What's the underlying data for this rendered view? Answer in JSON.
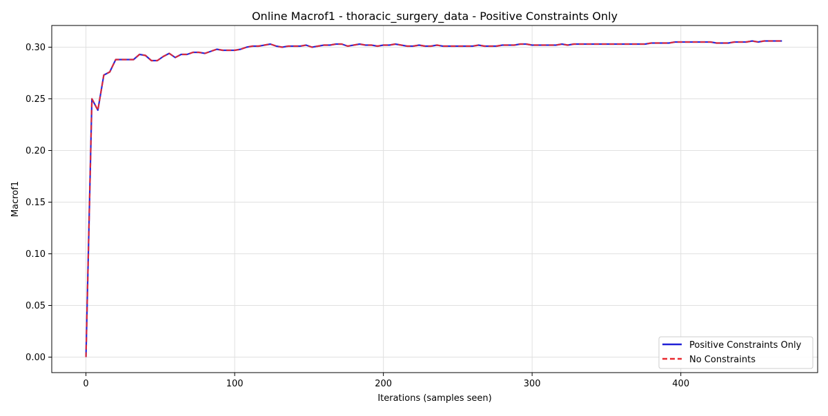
{
  "chart_data": {
    "type": "line",
    "title": "Online Macrof1 - thoracic_surgery_data - Positive Constraints Only",
    "xlabel": "Iterations (samples seen)",
    "ylabel": "Macrof1",
    "xlim": [
      -23,
      492
    ],
    "ylim": [
      -0.015,
      0.321
    ],
    "x_ticks": [
      0,
      100,
      200,
      300,
      400
    ],
    "y_ticks": [
      0.0,
      0.05,
      0.1,
      0.15,
      0.2,
      0.25,
      0.3
    ],
    "x_tick_labels": [
      "0",
      "100",
      "200",
      "300",
      "400"
    ],
    "y_tick_labels": [
      "0.00",
      "0.05",
      "0.10",
      "0.15",
      "0.20",
      "0.25",
      "0.30"
    ],
    "grid": true,
    "legend_position": "bottom-right",
    "x": [
      0,
      4,
      8,
      12,
      16,
      20,
      24,
      28,
      32,
      36,
      40,
      44,
      48,
      52,
      56,
      60,
      64,
      68,
      72,
      76,
      80,
      84,
      88,
      92,
      96,
      100,
      104,
      108,
      112,
      116,
      120,
      124,
      128,
      132,
      136,
      140,
      144,
      148,
      152,
      156,
      160,
      164,
      168,
      172,
      176,
      180,
      184,
      188,
      192,
      196,
      200,
      204,
      208,
      212,
      216,
      220,
      224,
      228,
      232,
      236,
      240,
      244,
      248,
      252,
      256,
      260,
      264,
      268,
      272,
      276,
      280,
      284,
      288,
      292,
      296,
      300,
      304,
      308,
      312,
      316,
      320,
      324,
      328,
      332,
      336,
      340,
      344,
      348,
      352,
      356,
      360,
      364,
      368,
      372,
      376,
      380,
      384,
      388,
      392,
      396,
      400,
      404,
      408,
      412,
      416,
      420,
      424,
      428,
      432,
      436,
      440,
      444,
      448,
      452,
      456,
      460,
      464,
      468
    ],
    "series": [
      {
        "name": "Positive Constraints Only",
        "color": "#1f1fd6",
        "style": "solid",
        "values": [
          0.0,
          0.25,
          0.239,
          0.273,
          0.276,
          0.288,
          0.288,
          0.288,
          0.288,
          0.293,
          0.292,
          0.287,
          0.287,
          0.291,
          0.294,
          0.29,
          0.293,
          0.293,
          0.295,
          0.295,
          0.294,
          0.296,
          0.298,
          0.297,
          0.297,
          0.297,
          0.298,
          0.3,
          0.301,
          0.301,
          0.302,
          0.303,
          0.301,
          0.3,
          0.301,
          0.301,
          0.301,
          0.302,
          0.3,
          0.301,
          0.302,
          0.302,
          0.303,
          0.303,
          0.301,
          0.302,
          0.303,
          0.302,
          0.302,
          0.301,
          0.302,
          0.302,
          0.303,
          0.302,
          0.301,
          0.301,
          0.302,
          0.301,
          0.301,
          0.302,
          0.301,
          0.301,
          0.301,
          0.301,
          0.301,
          0.301,
          0.302,
          0.301,
          0.301,
          0.301,
          0.302,
          0.302,
          0.302,
          0.303,
          0.303,
          0.302,
          0.302,
          0.302,
          0.302,
          0.302,
          0.303,
          0.302,
          0.303,
          0.303,
          0.303,
          0.303,
          0.303,
          0.303,
          0.303,
          0.303,
          0.303,
          0.303,
          0.303,
          0.303,
          0.303,
          0.304,
          0.304,
          0.304,
          0.304,
          0.305,
          0.305,
          0.305,
          0.305,
          0.305,
          0.305,
          0.305,
          0.304,
          0.304,
          0.304,
          0.305,
          0.305,
          0.305,
          0.306,
          0.305,
          0.306,
          0.306,
          0.306,
          0.306
        ]
      },
      {
        "name": "No Constraints",
        "color": "#e8282e",
        "style": "dashed",
        "values": [
          0.0,
          0.25,
          0.239,
          0.273,
          0.276,
          0.288,
          0.288,
          0.288,
          0.288,
          0.293,
          0.292,
          0.287,
          0.287,
          0.291,
          0.294,
          0.29,
          0.293,
          0.293,
          0.295,
          0.295,
          0.294,
          0.296,
          0.298,
          0.297,
          0.297,
          0.297,
          0.298,
          0.3,
          0.301,
          0.301,
          0.302,
          0.303,
          0.301,
          0.3,
          0.301,
          0.301,
          0.301,
          0.302,
          0.3,
          0.301,
          0.302,
          0.302,
          0.303,
          0.303,
          0.301,
          0.302,
          0.303,
          0.302,
          0.302,
          0.301,
          0.302,
          0.302,
          0.303,
          0.302,
          0.301,
          0.301,
          0.302,
          0.301,
          0.301,
          0.302,
          0.301,
          0.301,
          0.301,
          0.301,
          0.301,
          0.301,
          0.302,
          0.301,
          0.301,
          0.301,
          0.302,
          0.302,
          0.302,
          0.303,
          0.303,
          0.302,
          0.302,
          0.302,
          0.302,
          0.302,
          0.303,
          0.302,
          0.303,
          0.303,
          0.303,
          0.303,
          0.303,
          0.303,
          0.303,
          0.303,
          0.303,
          0.303,
          0.303,
          0.303,
          0.303,
          0.304,
          0.304,
          0.304,
          0.304,
          0.305,
          0.305,
          0.305,
          0.305,
          0.305,
          0.305,
          0.305,
          0.304,
          0.304,
          0.304,
          0.305,
          0.305,
          0.305,
          0.306,
          0.305,
          0.306,
          0.306,
          0.306,
          0.306
        ]
      }
    ]
  }
}
